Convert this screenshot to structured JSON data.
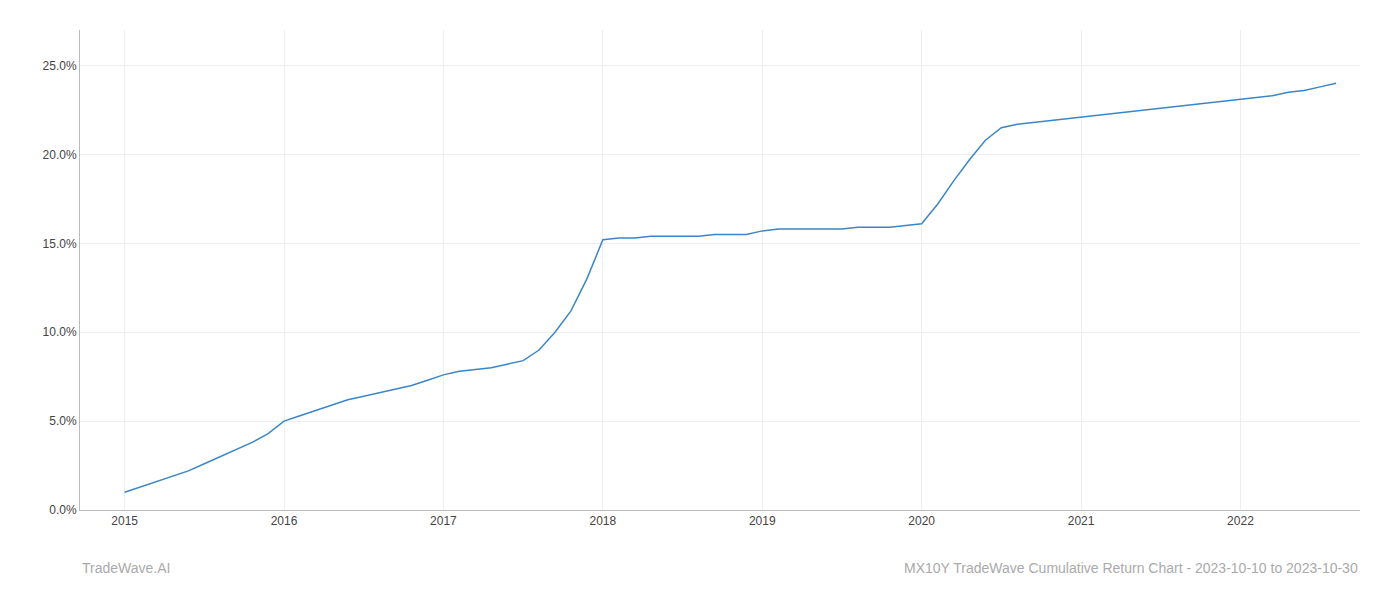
{
  "chart_data": {
    "type": "line",
    "x": [
      2015.0,
      2015.1,
      2015.2,
      2015.3,
      2015.4,
      2015.5,
      2015.6,
      2015.7,
      2015.8,
      2015.9,
      2016.0,
      2016.1,
      2016.2,
      2016.3,
      2016.4,
      2016.5,
      2016.6,
      2016.7,
      2016.8,
      2016.9,
      2017.0,
      2017.1,
      2017.2,
      2017.3,
      2017.4,
      2017.5,
      2017.6,
      2017.7,
      2017.8,
      2017.9,
      2018.0,
      2018.1,
      2018.2,
      2018.3,
      2018.4,
      2018.5,
      2018.6,
      2018.7,
      2018.8,
      2018.9,
      2019.0,
      2019.1,
      2019.2,
      2019.3,
      2019.4,
      2019.5,
      2019.6,
      2019.7,
      2019.8,
      2019.9,
      2020.0,
      2020.1,
      2020.2,
      2020.3,
      2020.4,
      2020.5,
      2020.6,
      2020.7,
      2020.8,
      2020.9,
      2021.0,
      2021.1,
      2021.2,
      2021.3,
      2021.4,
      2021.5,
      2021.6,
      2021.7,
      2021.8,
      2021.9,
      2022.0,
      2022.1,
      2022.2,
      2022.3,
      2022.4,
      2022.5,
      2022.6
    ],
    "values": [
      0.01,
      0.013,
      0.016,
      0.019,
      0.022,
      0.026,
      0.03,
      0.034,
      0.038,
      0.043,
      0.05,
      0.053,
      0.056,
      0.059,
      0.062,
      0.064,
      0.066,
      0.068,
      0.07,
      0.073,
      0.076,
      0.078,
      0.079,
      0.08,
      0.082,
      0.084,
      0.09,
      0.1,
      0.112,
      0.13,
      0.152,
      0.153,
      0.153,
      0.154,
      0.154,
      0.154,
      0.154,
      0.155,
      0.155,
      0.155,
      0.157,
      0.158,
      0.158,
      0.158,
      0.158,
      0.158,
      0.159,
      0.159,
      0.159,
      0.16,
      0.161,
      0.172,
      0.185,
      0.197,
      0.208,
      0.215,
      0.217,
      0.218,
      0.219,
      0.22,
      0.221,
      0.222,
      0.223,
      0.224,
      0.225,
      0.226,
      0.227,
      0.228,
      0.229,
      0.23,
      0.231,
      0.232,
      0.233,
      0.235,
      0.236,
      0.238,
      0.24
    ],
    "color": "#3a86c8",
    "xlim": [
      2014.72,
      2022.75
    ],
    "xticks": [
      2015,
      2016,
      2017,
      2018,
      2019,
      2020,
      2021,
      2022
    ],
    "ylim": [
      0.0,
      0.27
    ],
    "yticks": [
      {
        "value": 0.0,
        "label": "0.0%"
      },
      {
        "value": 0.05,
        "label": "5.0%"
      },
      {
        "value": 0.1,
        "label": "10.0%"
      },
      {
        "value": 0.15,
        "label": "15.0%"
      },
      {
        "value": 0.2,
        "label": "20.0%"
      },
      {
        "value": 0.25,
        "label": "25.0%"
      }
    ],
    "grid": true,
    "annotations": [
      "TradeWave.AI",
      "MX10Y TradeWave Cumulative Return Chart - 2023-10-10 to 2023-10-30"
    ]
  }
}
